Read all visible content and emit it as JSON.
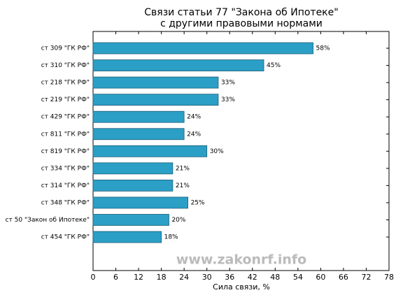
{
  "chart_data": {
    "type": "barh",
    "title": [
      "Связи статьи 77 \"Закона об Ипотеке\"",
      "с другими правовыми нормами"
    ],
    "categories": [
      "ст 309 \"ГК РФ\"",
      "ст 310 \"ГК РФ\"",
      "ст 218 \"ГК РФ\"",
      "ст 219 \"ГК РФ\"",
      "ст 429 \"ГК РФ\"",
      "ст 811 \"ГК РФ\"",
      "ст 819 \"ГК РФ\"",
      "ст 334 \"ГК РФ\"",
      "ст 314 \"ГК РФ\"",
      "ст 348 \"ГК РФ\"",
      "ст 50 \"Закон об Ипотеке\"",
      "ст 454 \"ГК РФ\""
    ],
    "values": [
      58,
      45,
      33,
      33,
      24,
      24,
      30,
      21,
      21,
      25,
      20,
      18
    ],
    "value_labels": [
      "58%",
      "45%",
      "33%",
      "33%",
      "24%",
      "24%",
      "30%",
      "21%",
      "21%",
      "25%",
      "20%",
      "18%"
    ],
    "color": "#2b9fc5",
    "xlabel": "Сила связи, %",
    "xlim": [
      0,
      78
    ],
    "xticks": [
      0,
      6,
      12,
      18,
      24,
      30,
      36,
      42,
      48,
      54,
      60,
      66,
      72,
      78
    ],
    "annotation": "www.zakonrf.info"
  }
}
